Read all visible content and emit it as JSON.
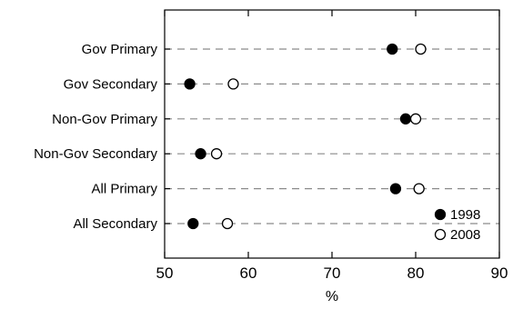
{
  "chart_data": {
    "type": "scatter",
    "title": "",
    "xlabel": "%",
    "ylabel": "",
    "xlim": [
      50,
      90
    ],
    "xticks": [
      50,
      60,
      70,
      80,
      90
    ],
    "grid": "dashed horizontal lines at each category",
    "legend_position": "bottom-right",
    "categories": [
      "Gov Primary",
      "Gov Secondary",
      "Non-Gov Primary",
      "Non-Gov Secondary",
      "All Primary",
      "All Secondary"
    ],
    "series": [
      {
        "name": "1998",
        "marker": "filled-circle",
        "color": "#000000",
        "values": [
          77.2,
          53.0,
          78.8,
          54.3,
          77.6,
          53.4
        ]
      },
      {
        "name": "2008",
        "marker": "open-circle",
        "color": "#ffffff",
        "values": [
          80.6,
          58.2,
          80.0,
          56.2,
          80.4,
          57.5
        ]
      }
    ]
  }
}
